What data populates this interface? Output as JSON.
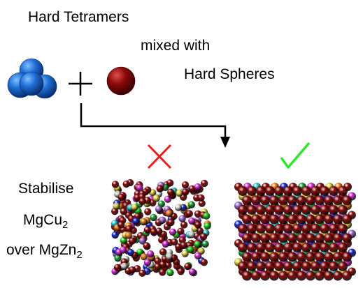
{
  "labels": {
    "tetramers": "Hard Tetramers",
    "mixed_with": "mixed with",
    "spheres": "Hard Spheres",
    "stabilise": "Stabilise",
    "phase_a": "MgCu",
    "phase_a_sub": "2",
    "over": "over MgZn",
    "phase_b_sub": "2"
  },
  "symbols": {
    "plus": "plus-icon",
    "rejected": "cross-icon",
    "accepted": "check-icon"
  },
  "colors": {
    "tetramer": "#1f6fd6",
    "sphere": "#8b0a0a",
    "cross": "#ee1c1c",
    "check": "#2ee82e",
    "arrow": "#000000",
    "palette": [
      "#8b0a0a",
      "#1f9e3a",
      "#d62fd6",
      "#2fd0d0",
      "#e8d84a",
      "#ee7f1a",
      "#1a2ad6",
      "#a06bd6",
      "#d8d8d8",
      "#20d020"
    ]
  }
}
